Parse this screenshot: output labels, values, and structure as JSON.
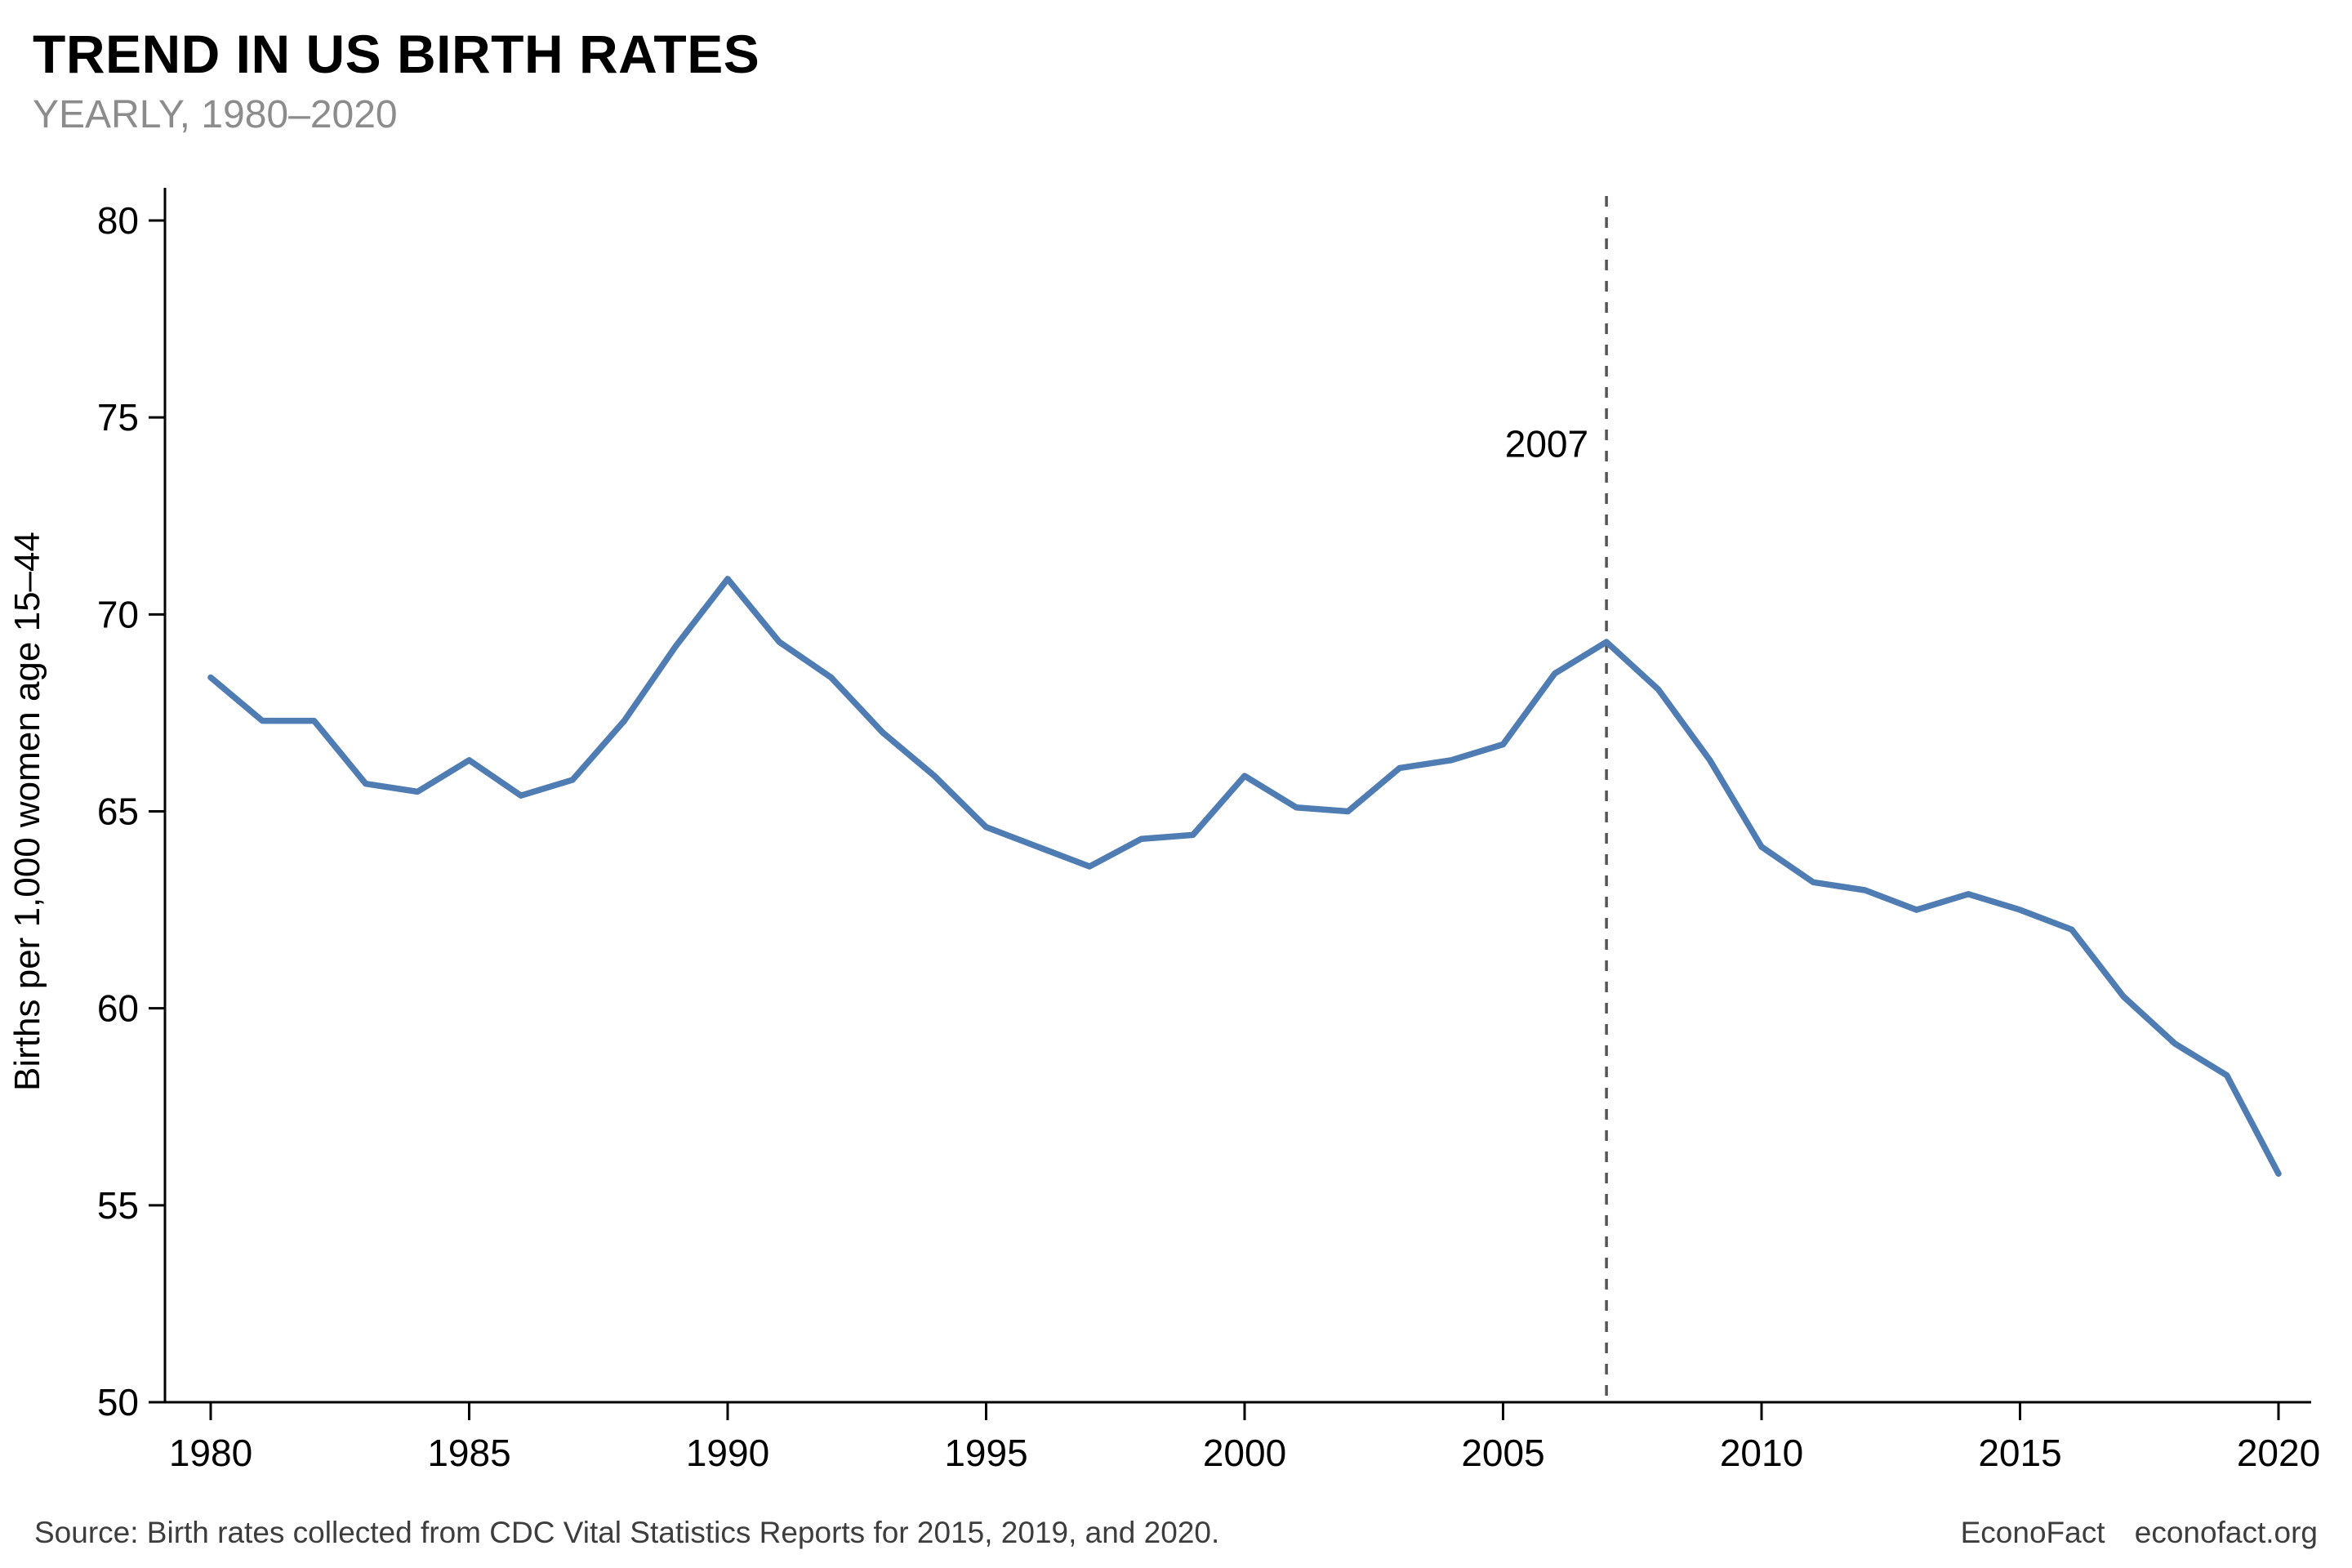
{
  "header": {
    "title": "TREND IN US BIRTH RATES",
    "subtitle": "YEARLY, 1980–2020"
  },
  "footer": {
    "source": "Source: Birth rates collected from CDC Vital Statistics Reports for 2015, 2019, and 2020.",
    "brand": "EconoFact",
    "site": "econofact.org"
  },
  "chart_data": {
    "type": "line",
    "title": "TREND IN US BIRTH RATES",
    "subtitle": "YEARLY, 1980–2020",
    "xlabel": "",
    "ylabel": "Births per 1,000 women age 15–44",
    "xlim": [
      1980,
      2020
    ],
    "ylim": [
      50,
      80
    ],
    "xticks": [
      1980,
      1985,
      1990,
      1995,
      2000,
      2005,
      2010,
      2015,
      2020
    ],
    "yticks": [
      50,
      55,
      60,
      65,
      70,
      75,
      80
    ],
    "grid": false,
    "legend": "none",
    "line_color": "#4f7cb2",
    "annotation": {
      "label": "2007",
      "x": 2007,
      "label_y": 74.0
    },
    "x": [
      1980,
      1981,
      1982,
      1983,
      1984,
      1985,
      1986,
      1987,
      1988,
      1989,
      1990,
      1991,
      1992,
      1993,
      1994,
      1995,
      1996,
      1997,
      1998,
      1999,
      2000,
      2001,
      2002,
      2003,
      2004,
      2005,
      2006,
      2007,
      2008,
      2009,
      2010,
      2011,
      2012,
      2013,
      2014,
      2015,
      2016,
      2017,
      2018,
      2019,
      2020
    ],
    "series": [
      {
        "name": "Births per 1,000 women age 15–44",
        "values": [
          68.4,
          67.3,
          67.3,
          65.7,
          65.5,
          66.3,
          65.4,
          65.8,
          67.3,
          69.2,
          70.9,
          69.3,
          68.4,
          67.0,
          65.9,
          64.6,
          64.1,
          63.6,
          64.3,
          64.4,
          65.9,
          65.1,
          65.0,
          66.1,
          66.3,
          66.7,
          68.5,
          69.3,
          68.1,
          66.3,
          64.1,
          63.2,
          63.0,
          62.5,
          62.9,
          62.5,
          62.0,
          60.3,
          59.1,
          58.3,
          55.8
        ]
      }
    ]
  }
}
